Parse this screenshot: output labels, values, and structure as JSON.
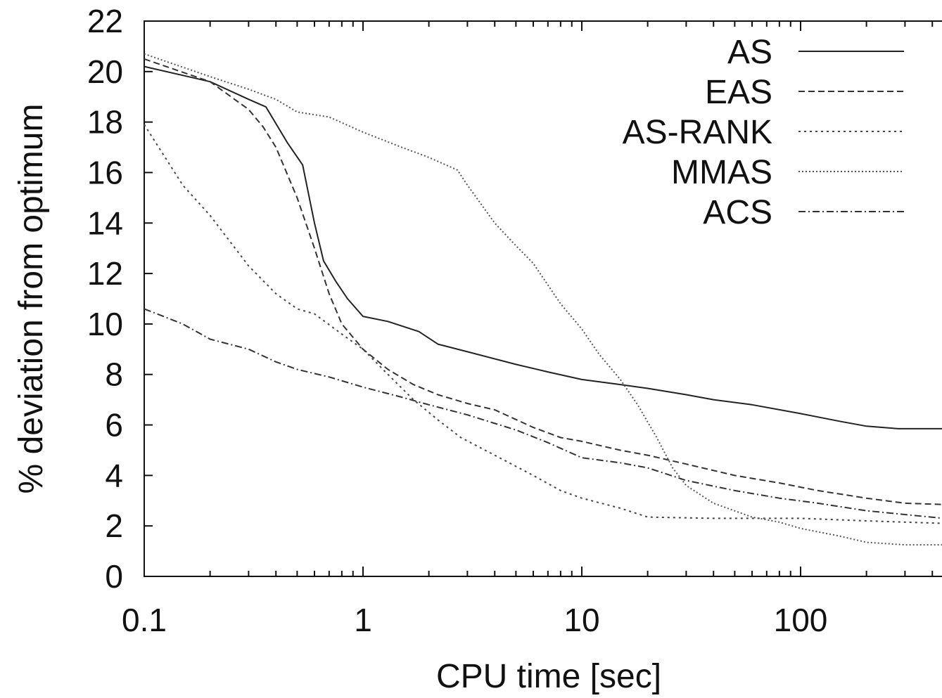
{
  "chart_data": {
    "type": "line",
    "title": "",
    "xlabel": "CPU time [sec]",
    "ylabel": "% deviation from optimum",
    "x_scale": "log",
    "xlim": [
      0.1,
      450
    ],
    "ylim": [
      0,
      22
    ],
    "x_ticks": [
      0.1,
      1,
      10,
      100
    ],
    "x_tick_labels": [
      "0.1",
      "1",
      "10",
      "100"
    ],
    "y_ticks": [
      0,
      2,
      4,
      6,
      8,
      10,
      12,
      14,
      16,
      18,
      20,
      22
    ],
    "y_tick_labels": [
      "0",
      "2",
      "4",
      "6",
      "8",
      "10",
      "12",
      "14",
      "16",
      "18",
      "20",
      "22"
    ],
    "grid": false,
    "legend_position": "top-right",
    "series": [
      {
        "name": "AS",
        "dash": "solid",
        "color": "#222222",
        "points": [
          [
            0.1,
            20.2
          ],
          [
            0.2,
            19.6
          ],
          [
            0.3,
            18.9
          ],
          [
            0.36,
            18.6
          ],
          [
            0.45,
            17.2
          ],
          [
            0.53,
            16.3
          ],
          [
            0.6,
            14.0
          ],
          [
            0.66,
            12.5
          ],
          [
            0.75,
            11.7
          ],
          [
            0.85,
            11.0
          ],
          [
            1.0,
            10.3
          ],
          [
            1.3,
            10.1
          ],
          [
            1.8,
            9.7
          ],
          [
            2.2,
            9.2
          ],
          [
            3.0,
            8.9
          ],
          [
            5.0,
            8.4
          ],
          [
            7.0,
            8.1
          ],
          [
            10,
            7.8
          ],
          [
            15,
            7.6
          ],
          [
            20,
            7.45
          ],
          [
            30,
            7.2
          ],
          [
            40,
            7.0
          ],
          [
            60,
            6.8
          ],
          [
            100,
            6.45
          ],
          [
            150,
            6.15
          ],
          [
            200,
            5.95
          ],
          [
            280,
            5.85
          ],
          [
            450,
            5.85
          ]
        ]
      },
      {
        "name": "EAS",
        "dash": "dashed",
        "color": "#333333",
        "points": [
          [
            0.1,
            20.5
          ],
          [
            0.2,
            19.6
          ],
          [
            0.3,
            18.5
          ],
          [
            0.35,
            17.8
          ],
          [
            0.4,
            17.0
          ],
          [
            0.5,
            15.0
          ],
          [
            0.6,
            13.0
          ],
          [
            0.7,
            11.2
          ],
          [
            0.8,
            10.0
          ],
          [
            1.0,
            9.0
          ],
          [
            1.3,
            8.2
          ],
          [
            1.7,
            7.6
          ],
          [
            2.2,
            7.2
          ],
          [
            3.0,
            6.85
          ],
          [
            4.0,
            6.6
          ],
          [
            6.0,
            5.9
          ],
          [
            8.0,
            5.5
          ],
          [
            10,
            5.35
          ],
          [
            15,
            5.0
          ],
          [
            20,
            4.8
          ],
          [
            30,
            4.45
          ],
          [
            50,
            4.0
          ],
          [
            80,
            3.7
          ],
          [
            120,
            3.4
          ],
          [
            200,
            3.1
          ],
          [
            300,
            2.9
          ],
          [
            450,
            2.85
          ]
        ]
      },
      {
        "name": "AS-RANK",
        "dash": "dotted",
        "color": "#444444",
        "points": [
          [
            0.1,
            17.9
          ],
          [
            0.15,
            15.5
          ],
          [
            0.2,
            14.3
          ],
          [
            0.3,
            12.3
          ],
          [
            0.4,
            11.2
          ],
          [
            0.5,
            10.6
          ],
          [
            0.6,
            10.4
          ],
          [
            0.8,
            9.6
          ],
          [
            1.0,
            9.0
          ],
          [
            1.3,
            8.0
          ],
          [
            1.7,
            7.0
          ],
          [
            2.2,
            6.2
          ],
          [
            2.8,
            5.5
          ],
          [
            4.0,
            4.8
          ],
          [
            6.0,
            4.0
          ],
          [
            8.0,
            3.4
          ],
          [
            10,
            3.1
          ],
          [
            15,
            2.7
          ],
          [
            20,
            2.35
          ],
          [
            40,
            2.3
          ],
          [
            100,
            2.3
          ],
          [
            200,
            2.2
          ],
          [
            450,
            2.1
          ]
        ]
      },
      {
        "name": "MMAS",
        "dash": "fine-dotted",
        "color": "#555555",
        "points": [
          [
            0.1,
            20.7
          ],
          [
            0.2,
            19.8
          ],
          [
            0.3,
            19.3
          ],
          [
            0.4,
            18.9
          ],
          [
            0.5,
            18.4
          ],
          [
            0.7,
            18.2
          ],
          [
            1.0,
            17.6
          ],
          [
            1.5,
            17.0
          ],
          [
            2.0,
            16.6
          ],
          [
            2.7,
            16.1
          ],
          [
            3.0,
            15.5
          ],
          [
            4.0,
            14.0
          ],
          [
            5.0,
            13.1
          ],
          [
            6.0,
            12.4
          ],
          [
            8.0,
            10.8
          ],
          [
            10,
            9.8
          ],
          [
            12,
            8.8
          ],
          [
            15,
            7.8
          ],
          [
            18,
            6.8
          ],
          [
            22,
            5.5
          ],
          [
            26,
            4.3
          ],
          [
            30,
            3.6
          ],
          [
            40,
            2.9
          ],
          [
            60,
            2.35
          ],
          [
            80,
            2.15
          ],
          [
            100,
            1.9
          ],
          [
            150,
            1.6
          ],
          [
            200,
            1.35
          ],
          [
            300,
            1.25
          ],
          [
            450,
            1.25
          ]
        ]
      },
      {
        "name": "ACS",
        "dash": "dash-dot",
        "color": "#333333",
        "points": [
          [
            0.1,
            10.6
          ],
          [
            0.15,
            10.0
          ],
          [
            0.2,
            9.4
          ],
          [
            0.3,
            9.0
          ],
          [
            0.4,
            8.5
          ],
          [
            0.5,
            8.2
          ],
          [
            0.7,
            7.9
          ],
          [
            1.0,
            7.5
          ],
          [
            1.5,
            7.1
          ],
          [
            2.0,
            6.8
          ],
          [
            3.0,
            6.4
          ],
          [
            5.0,
            5.8
          ],
          [
            7.0,
            5.3
          ],
          [
            10,
            4.7
          ],
          [
            15,
            4.5
          ],
          [
            20,
            4.3
          ],
          [
            30,
            3.8
          ],
          [
            50,
            3.4
          ],
          [
            80,
            3.1
          ],
          [
            120,
            2.9
          ],
          [
            200,
            2.6
          ],
          [
            300,
            2.45
          ],
          [
            450,
            2.3
          ]
        ]
      }
    ]
  }
}
